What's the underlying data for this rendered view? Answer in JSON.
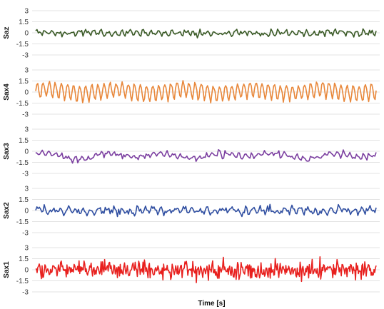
{
  "chart_data": {
    "type": "line",
    "xlabel": "Time [s]",
    "grid": true,
    "legend": "none",
    "panels": [
      {
        "ylabel": "Saz",
        "color": "#3a5a26",
        "ylim": [
          -3,
          3
        ],
        "yticks": [
          "3",
          "1.5",
          "0",
          "-1.5",
          "-3"
        ],
        "signal": {
          "n": 260,
          "offset": 0,
          "components": [
            {
              "amp": 0.22,
              "freq": 48,
              "phase": 0.3
            },
            {
              "amp": 0.12,
              "freq": 83,
              "phase": 1.1
            },
            {
              "amp": 0.08,
              "freq": 7,
              "phase": 0.8
            }
          ],
          "noise": 0.32,
          "seed": 11
        }
      },
      {
        "ylabel": "Sax4",
        "color": "#e8873a",
        "ylim": [
          -3,
          3
        ],
        "yticks": [
          "3",
          "1.5",
          "0",
          "-1.5",
          "-3"
        ],
        "signal": {
          "n": 320,
          "offset": 0.1,
          "components": [
            {
              "amp": 1.05,
              "freq": 56,
              "phase": 0.0
            },
            {
              "amp": 0.25,
              "freq": 5,
              "phase": 0.4
            },
            {
              "amp": 0.15,
              "freq": 112,
              "phase": 0.9
            }
          ],
          "noise": 0.25,
          "seed": 23
        }
      },
      {
        "ylabel": "Sax3",
        "color": "#7b3fa0",
        "ylim": [
          -3,
          3
        ],
        "yticks": [
          "3",
          "1.5",
          "0",
          "-1.5",
          "-3"
        ],
        "signal": {
          "n": 260,
          "offset": -0.6,
          "components": [
            {
              "amp": 0.28,
              "freq": 6,
              "phase": 0.2
            },
            {
              "amp": 0.25,
              "freq": 52,
              "phase": 1.4
            },
            {
              "amp": 0.15,
              "freq": 3,
              "phase": 2.2
            }
          ],
          "noise": 0.35,
          "seed": 37
        }
      },
      {
        "ylabel": "Sax2",
        "color": "#2f4ea1",
        "ylim": [
          -3,
          3
        ],
        "yticks": [
          "3",
          "1.5",
          "0",
          "-1.5",
          "-3"
        ],
        "signal": {
          "n": 280,
          "offset": 0,
          "components": [
            {
              "amp": 0.35,
              "freq": 44,
              "phase": 0.5
            },
            {
              "amp": 0.12,
              "freq": 9,
              "phase": 1.7
            }
          ],
          "noise": 0.45,
          "seed": 53
        }
      },
      {
        "ylabel": "Sax1",
        "color": "#e8201e",
        "ylim": [
          -3,
          3
        ],
        "yticks": [
          "3",
          "1.5",
          "0",
          "-1.5",
          "-3"
        ],
        "signal": {
          "n": 480,
          "offset": 0,
          "components": [
            {
              "amp": 0.3,
              "freq": 120,
              "phase": 0.1
            }
          ],
          "noise": 1.1,
          "seed": 71
        }
      }
    ]
  }
}
